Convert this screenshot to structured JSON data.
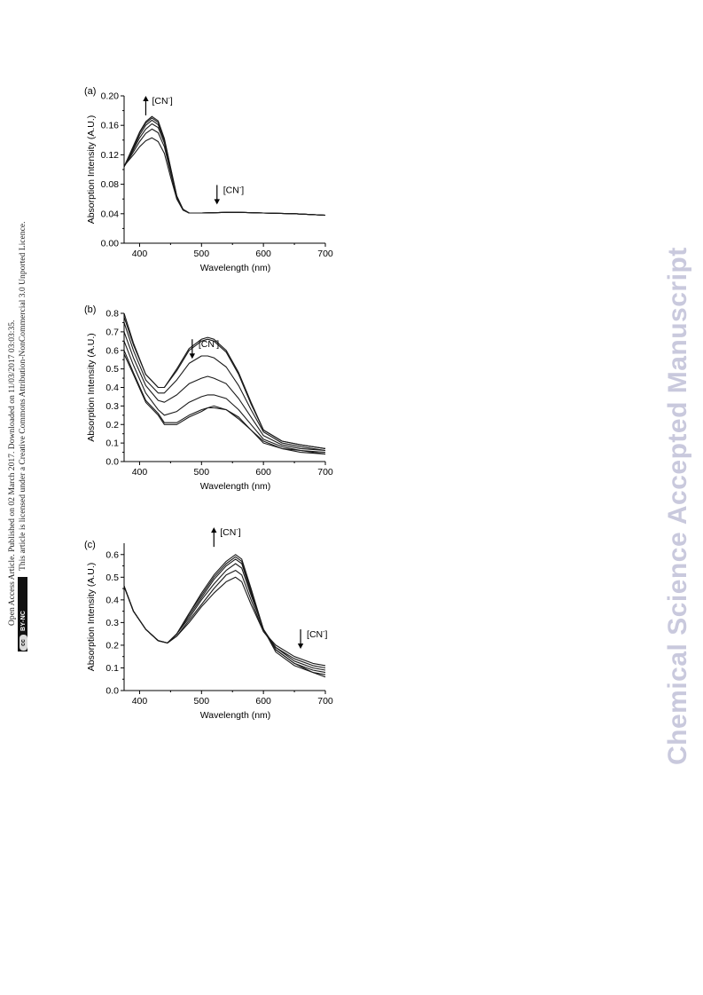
{
  "side_notice": {
    "line1": "Open Access Article. Published on 02 March 2017. Downloaded on 11/03/2017 03:03:35.",
    "line2": "This article is licensed under a Creative Commons Attribution-NonCommercial 3.0 Unported Licence.",
    "license_badge": "BY-NC",
    "license_cc": "cc"
  },
  "watermark": "Chemical Science Accepted Manuscript",
  "chart_data": [
    {
      "type": "line",
      "panel_label": "(a)",
      "xlabel": "Wavelength (nm)",
      "ylabel": "Absorption Intensity (A.U.)",
      "xlim": [
        375,
        700
      ],
      "ylim": [
        0.0,
        0.2
      ],
      "xticks": [
        400,
        500,
        600,
        700
      ],
      "xtick_labels": [
        "400",
        "500",
        "600",
        "700"
      ],
      "yticks": [
        0.0,
        0.04,
        0.08,
        0.12,
        0.16,
        0.2
      ],
      "ytick_labels": [
        "0.00",
        "0.04",
        "0.08",
        "0.12",
        "0.16",
        "0.20"
      ],
      "annotations": [
        {
          "text": "[CN",
          "sup": "-",
          "close": "]",
          "direction": "up",
          "x": 410,
          "y": 0.2
        },
        {
          "text": "[CN",
          "sup": "-",
          "close": "]",
          "direction": "down",
          "x": 525,
          "y": 0.079
        }
      ],
      "series": [
        {
          "x": [
            375,
            390,
            400,
            410,
            420,
            430,
            440,
            450,
            460,
            470,
            480,
            500,
            550,
            600,
            650,
            700
          ],
          "y": [
            0.105,
            0.12,
            0.131,
            0.139,
            0.143,
            0.138,
            0.122,
            0.09,
            0.06,
            0.045,
            0.041,
            0.041,
            0.042,
            0.041,
            0.04,
            0.038
          ]
        },
        {
          "x": [
            375,
            390,
            400,
            410,
            420,
            430,
            440,
            450,
            460,
            470,
            480,
            500,
            550,
            600,
            650,
            700
          ],
          "y": [
            0.104,
            0.124,
            0.138,
            0.149,
            0.155,
            0.15,
            0.131,
            0.096,
            0.062,
            0.046,
            0.041,
            0.041,
            0.042,
            0.041,
            0.04,
            0.038
          ]
        },
        {
          "x": [
            375,
            390,
            400,
            410,
            420,
            430,
            440,
            450,
            460,
            470,
            480,
            500,
            550,
            600,
            650,
            700
          ],
          "y": [
            0.104,
            0.127,
            0.143,
            0.155,
            0.162,
            0.157,
            0.136,
            0.099,
            0.063,
            0.046,
            0.041,
            0.041,
            0.042,
            0.041,
            0.04,
            0.038
          ]
        },
        {
          "x": [
            375,
            390,
            400,
            410,
            420,
            430,
            440,
            450,
            460,
            470,
            480,
            500,
            550,
            600,
            650,
            700
          ],
          "y": [
            0.104,
            0.129,
            0.147,
            0.16,
            0.167,
            0.161,
            0.139,
            0.101,
            0.064,
            0.046,
            0.041,
            0.041,
            0.042,
            0.041,
            0.04,
            0.038
          ]
        },
        {
          "x": [
            375,
            390,
            400,
            410,
            420,
            430,
            440,
            450,
            460,
            470,
            480,
            500,
            550,
            600,
            650,
            700
          ],
          "y": [
            0.104,
            0.131,
            0.15,
            0.163,
            0.17,
            0.164,
            0.141,
            0.102,
            0.064,
            0.046,
            0.041,
            0.041,
            0.042,
            0.041,
            0.04,
            0.038
          ]
        },
        {
          "x": [
            375,
            390,
            400,
            410,
            420,
            430,
            440,
            450,
            460,
            470,
            480,
            500,
            550,
            600,
            650,
            700
          ],
          "y": [
            0.104,
            0.132,
            0.151,
            0.165,
            0.172,
            0.166,
            0.142,
            0.103,
            0.064,
            0.046,
            0.041,
            0.041,
            0.042,
            0.041,
            0.04,
            0.038
          ]
        }
      ]
    },
    {
      "type": "line",
      "panel_label": "(b)",
      "xlabel": "Wavelength (nm)",
      "ylabel": "Absorption Intensity (A.U.)",
      "xlim": [
        375,
        700
      ],
      "ylim": [
        0.0,
        0.8
      ],
      "xticks": [
        400,
        500,
        600,
        700
      ],
      "xtick_labels": [
        "400",
        "500",
        "600",
        "700"
      ],
      "yticks": [
        0.0,
        0.1,
        0.2,
        0.3,
        0.4,
        0.5,
        0.6,
        0.7,
        0.8
      ],
      "ytick_labels": [
        "0.0",
        "0.1",
        "0.2",
        "0.3",
        "0.4",
        "0.5",
        "0.6",
        "0.7",
        "0.8"
      ],
      "annotations": [
        {
          "text": "[CN",
          "sup": "-",
          "close": "]",
          "direction": "down",
          "x": 485,
          "y": 0.66
        }
      ],
      "series": [
        {
          "x": [
            375,
            390,
            410,
            430,
            440,
            460,
            480,
            500,
            510,
            520,
            540,
            560,
            580,
            600,
            630,
            660,
            700
          ],
          "y": [
            0.8,
            0.64,
            0.47,
            0.4,
            0.4,
            0.5,
            0.61,
            0.66,
            0.67,
            0.66,
            0.6,
            0.48,
            0.32,
            0.17,
            0.11,
            0.09,
            0.07
          ]
        },
        {
          "x": [
            375,
            390,
            410,
            430,
            440,
            460,
            480,
            500,
            510,
            520,
            540,
            560,
            580,
            600,
            630,
            660,
            700
          ],
          "y": [
            0.78,
            0.63,
            0.47,
            0.4,
            0.4,
            0.49,
            0.6,
            0.65,
            0.66,
            0.65,
            0.59,
            0.47,
            0.31,
            0.17,
            0.11,
            0.09,
            0.07
          ]
        },
        {
          "x": [
            375,
            390,
            410,
            430,
            440,
            460,
            480,
            500,
            510,
            520,
            540,
            560,
            580,
            600,
            630,
            660,
            700
          ],
          "y": [
            0.75,
            0.6,
            0.44,
            0.37,
            0.37,
            0.44,
            0.53,
            0.57,
            0.57,
            0.56,
            0.51,
            0.41,
            0.28,
            0.16,
            0.1,
            0.08,
            0.06
          ]
        },
        {
          "x": [
            375,
            390,
            410,
            430,
            440,
            460,
            480,
            500,
            510,
            520,
            540,
            560,
            580,
            600,
            630,
            660,
            700
          ],
          "y": [
            0.7,
            0.56,
            0.41,
            0.33,
            0.32,
            0.36,
            0.42,
            0.45,
            0.46,
            0.45,
            0.42,
            0.34,
            0.24,
            0.14,
            0.09,
            0.07,
            0.06
          ]
        },
        {
          "x": [
            375,
            390,
            410,
            430,
            440,
            460,
            480,
            500,
            510,
            520,
            540,
            560,
            580,
            600,
            630,
            660,
            700
          ],
          "y": [
            0.65,
            0.52,
            0.37,
            0.28,
            0.25,
            0.27,
            0.32,
            0.35,
            0.36,
            0.36,
            0.34,
            0.28,
            0.2,
            0.12,
            0.08,
            0.06,
            0.05
          ]
        },
        {
          "x": [
            375,
            390,
            410,
            430,
            440,
            460,
            480,
            500,
            510,
            520,
            540,
            560,
            580,
            600,
            630,
            660,
            700
          ],
          "y": [
            0.6,
            0.48,
            0.33,
            0.26,
            0.21,
            0.21,
            0.25,
            0.28,
            0.29,
            0.3,
            0.28,
            0.24,
            0.17,
            0.11,
            0.07,
            0.06,
            0.04
          ]
        },
        {
          "x": [
            375,
            390,
            410,
            430,
            440,
            460,
            480,
            500,
            510,
            520,
            540,
            560,
            580,
            600,
            630,
            660,
            700
          ],
          "y": [
            0.58,
            0.47,
            0.32,
            0.25,
            0.2,
            0.2,
            0.24,
            0.27,
            0.29,
            0.29,
            0.28,
            0.23,
            0.17,
            0.1,
            0.07,
            0.05,
            0.04
          ]
        }
      ]
    },
    {
      "type": "line",
      "panel_label": "(c)",
      "xlabel": "Wavelength (nm)",
      "ylabel": "Absorption Intensity (A.U.)",
      "xlim": [
        375,
        700
      ],
      "ylim": [
        0.0,
        0.65
      ],
      "xticks": [
        400,
        500,
        600,
        700
      ],
      "xtick_labels": [
        "400",
        "500",
        "600",
        "700"
      ],
      "yticks": [
        0.0,
        0.1,
        0.2,
        0.3,
        0.4,
        0.5,
        0.6
      ],
      "ytick_labels": [
        "0.0",
        "0.1",
        "0.2",
        "0.3",
        "0.4",
        "0.5",
        "0.6"
      ],
      "annotations": [
        {
          "text": "[CN",
          "sup": "-",
          "close": "]",
          "direction": "up",
          "x": 520,
          "y": 0.72
        },
        {
          "text": "[CN",
          "sup": "-",
          "close": "]",
          "direction": "down",
          "x": 660,
          "y": 0.27
        }
      ],
      "series": [
        {
          "x": [
            375,
            390,
            410,
            430,
            445,
            460,
            480,
            500,
            520,
            540,
            555,
            565,
            580,
            600,
            620,
            650,
            680,
            700
          ],
          "y": [
            0.46,
            0.35,
            0.27,
            0.22,
            0.21,
            0.24,
            0.3,
            0.37,
            0.43,
            0.48,
            0.5,
            0.48,
            0.38,
            0.26,
            0.2,
            0.15,
            0.12,
            0.11
          ]
        },
        {
          "x": [
            375,
            390,
            410,
            430,
            445,
            460,
            480,
            500,
            520,
            540,
            555,
            565,
            580,
            600,
            620,
            650,
            680,
            700
          ],
          "y": [
            0.46,
            0.35,
            0.27,
            0.22,
            0.21,
            0.24,
            0.31,
            0.38,
            0.45,
            0.51,
            0.53,
            0.51,
            0.4,
            0.26,
            0.19,
            0.14,
            0.11,
            0.1
          ]
        },
        {
          "x": [
            375,
            390,
            410,
            430,
            445,
            460,
            480,
            500,
            520,
            540,
            555,
            565,
            580,
            600,
            620,
            650,
            680,
            700
          ],
          "y": [
            0.46,
            0.35,
            0.27,
            0.22,
            0.21,
            0.25,
            0.32,
            0.4,
            0.47,
            0.53,
            0.56,
            0.54,
            0.42,
            0.27,
            0.19,
            0.13,
            0.1,
            0.09
          ]
        },
        {
          "x": [
            375,
            390,
            410,
            430,
            445,
            460,
            480,
            500,
            520,
            540,
            555,
            565,
            580,
            600,
            620,
            650,
            680,
            700
          ],
          "y": [
            0.46,
            0.35,
            0.27,
            0.22,
            0.21,
            0.25,
            0.33,
            0.41,
            0.49,
            0.55,
            0.58,
            0.56,
            0.43,
            0.27,
            0.18,
            0.12,
            0.09,
            0.08
          ]
        },
        {
          "x": [
            375,
            390,
            410,
            430,
            445,
            460,
            480,
            500,
            520,
            540,
            555,
            565,
            580,
            600,
            620,
            650,
            680,
            700
          ],
          "y": [
            0.46,
            0.35,
            0.27,
            0.22,
            0.21,
            0.25,
            0.34,
            0.42,
            0.5,
            0.56,
            0.59,
            0.57,
            0.44,
            0.27,
            0.18,
            0.12,
            0.08,
            0.07
          ]
        },
        {
          "x": [
            375,
            390,
            410,
            430,
            445,
            460,
            480,
            500,
            520,
            540,
            555,
            565,
            580,
            600,
            620,
            650,
            680,
            700
          ],
          "y": [
            0.46,
            0.35,
            0.27,
            0.22,
            0.21,
            0.25,
            0.34,
            0.43,
            0.51,
            0.57,
            0.6,
            0.58,
            0.45,
            0.27,
            0.17,
            0.11,
            0.08,
            0.06
          ]
        }
      ]
    }
  ]
}
